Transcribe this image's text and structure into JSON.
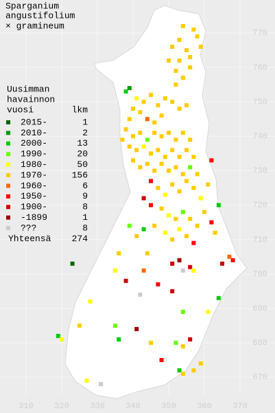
{
  "title": [
    "Sparganium",
    "angustifolium",
    "× gramineum"
  ],
  "legend": {
    "heading": [
      "Uusimman",
      "havainnon"
    ],
    "col1": "vuosi",
    "col2": "lkm",
    "items": [
      {
        "label": "2015-",
        "count": 1,
        "color": "#006600"
      },
      {
        "label": "2010-",
        "count": 2,
        "color": "#009900"
      },
      {
        "label": "2000-",
        "count": 13,
        "color": "#00cc00"
      },
      {
        "label": "1990-",
        "count": 20,
        "color": "#66ff00"
      },
      {
        "label": "1980-",
        "count": 50,
        "color": "#ffff00"
      },
      {
        "label": "1970-",
        "count": 156,
        "color": "#ffcc00"
      },
      {
        "label": "1960-",
        "count": 6,
        "color": "#ff6600"
      },
      {
        "label": "1950-",
        "count": 9,
        "color": "#ff0000"
      },
      {
        "label": "1900-",
        "count": 8,
        "color": "#cc0000"
      },
      {
        "label": "-1899",
        "count": 1,
        "color": "#990000"
      },
      {
        "label": "???",
        "count": 8,
        "color": "#cccccc"
      }
    ],
    "total_label": "Yhteensä",
    "total": 274
  },
  "xticks": [
    310,
    320,
    330,
    340,
    350,
    360,
    370
  ],
  "yticks": [
    670,
    680,
    690,
    700,
    710,
    720,
    730,
    740,
    750,
    760,
    770
  ],
  "points": [
    [
      354,
      772,
      5
    ],
    [
      357,
      771,
      5
    ],
    [
      353,
      768,
      5
    ],
    [
      358,
      769,
      5
    ],
    [
      351,
      766,
      5
    ],
    [
      355,
      765,
      5
    ],
    [
      359,
      766,
      5
    ],
    [
      350,
      762,
      5
    ],
    [
      353,
      762,
      5
    ],
    [
      356,
      763,
      5
    ],
    [
      352,
      759,
      5
    ],
    [
      354,
      757,
      5
    ],
    [
      356,
      760,
      5
    ],
    [
      352,
      755,
      5
    ],
    [
      338,
      753,
      2
    ],
    [
      339,
      754,
      1
    ],
    [
      341,
      751,
      4
    ],
    [
      343,
      750,
      5
    ],
    [
      340,
      748,
      5
    ],
    [
      342,
      747,
      5
    ],
    [
      345,
      752,
      5
    ],
    [
      347,
      749,
      5
    ],
    [
      349,
      751,
      5
    ],
    [
      351,
      750,
      5
    ],
    [
      353,
      748,
      5
    ],
    [
      355,
      749,
      5
    ],
    [
      348,
      746,
      5
    ],
    [
      344,
      745,
      6
    ],
    [
      346,
      744,
      5
    ],
    [
      338,
      742,
      5
    ],
    [
      340,
      740,
      5
    ],
    [
      342,
      741,
      5
    ],
    [
      344,
      739,
      3
    ],
    [
      346,
      741,
      5
    ],
    [
      348,
      740,
      5
    ],
    [
      350,
      741,
      5
    ],
    [
      352,
      739,
      5
    ],
    [
      354,
      741,
      5
    ],
    [
      356,
      739,
      5
    ],
    [
      339,
      737,
      5
    ],
    [
      341,
      736,
      5
    ],
    [
      343,
      737,
      4
    ],
    [
      345,
      735,
      5
    ],
    [
      347,
      736,
      5
    ],
    [
      349,
      734,
      5
    ],
    [
      351,
      736,
      5
    ],
    [
      353,
      734,
      5
    ],
    [
      355,
      736,
      5
    ],
    [
      357,
      734,
      5
    ],
    [
      340,
      733,
      5
    ],
    [
      342,
      731,
      5
    ],
    [
      344,
      732,
      5
    ],
    [
      346,
      730,
      5
    ],
    [
      348,
      732,
      5
    ],
    [
      350,
      730,
      5
    ],
    [
      352,
      731,
      5
    ],
    [
      354,
      729,
      5
    ],
    [
      356,
      731,
      3
    ],
    [
      358,
      729,
      5
    ],
    [
      362,
      733,
      7
    ],
    [
      339,
      745,
      5
    ],
    [
      337,
      739,
      5
    ],
    [
      345,
      727,
      7
    ],
    [
      347,
      725,
      5
    ],
    [
      349,
      723,
      4
    ],
    [
      351,
      726,
      5
    ],
    [
      353,
      724,
      5
    ],
    [
      355,
      727,
      5
    ],
    [
      357,
      725,
      5
    ],
    [
      359,
      722,
      4
    ],
    [
      361,
      726,
      5
    ],
    [
      343,
      722,
      8
    ],
    [
      345,
      720,
      7
    ],
    [
      348,
      719,
      5
    ],
    [
      350,
      717,
      4
    ],
    [
      352,
      716,
      5
    ],
    [
      354,
      718,
      3
    ],
    [
      356,
      716,
      5
    ],
    [
      358,
      714,
      5
    ],
    [
      360,
      718,
      5
    ],
    [
      362,
      715,
      7
    ],
    [
      364,
      720,
      2
    ],
    [
      346,
      714,
      5
    ],
    [
      349,
      712,
      4
    ],
    [
      351,
      710,
      5
    ],
    [
      353,
      713,
      4
    ],
    [
      355,
      711,
      5
    ],
    [
      339,
      714,
      3
    ],
    [
      341,
      711,
      5
    ],
    [
      343,
      713,
      2
    ],
    [
      357,
      709,
      7
    ],
    [
      363,
      712,
      5
    ],
    [
      344,
      706,
      5
    ],
    [
      336,
      706,
      5
    ],
    [
      351,
      703,
      8
    ],
    [
      353,
      704,
      9
    ],
    [
      354,
      701,
      10
    ],
    [
      356,
      702,
      8
    ],
    [
      343,
      701,
      6
    ],
    [
      367,
      705,
      6
    ],
    [
      368,
      704,
      7
    ],
    [
      365,
      703,
      8
    ],
    [
      347,
      697,
      7
    ],
    [
      342,
      694,
      10
    ],
    [
      351,
      695,
      8
    ],
    [
      357,
      701,
      4
    ],
    [
      323,
      703,
      0
    ],
    [
      335,
      701,
      4
    ],
    [
      338,
      698,
      8
    ],
    [
      328,
      692,
      4
    ],
    [
      361,
      689,
      4
    ],
    [
      364,
      693,
      2
    ],
    [
      354,
      689,
      3
    ],
    [
      325,
      685,
      5
    ],
    [
      335,
      685,
      3
    ],
    [
      341,
      684,
      9
    ],
    [
      319,
      682,
      2
    ],
    [
      320,
      681,
      4
    ],
    [
      336,
      681,
      2
    ],
    [
      345,
      680,
      5
    ],
    [
      352,
      680,
      3
    ],
    [
      354,
      679,
      5
    ],
    [
      356,
      681,
      8
    ],
    [
      348,
      675,
      7
    ],
    [
      359,
      674,
      5
    ],
    [
      353,
      672,
      2
    ],
    [
      354,
      671,
      5
    ],
    [
      357,
      672,
      5
    ],
    [
      331,
      668,
      10
    ],
    [
      327,
      669,
      4
    ]
  ]
}
